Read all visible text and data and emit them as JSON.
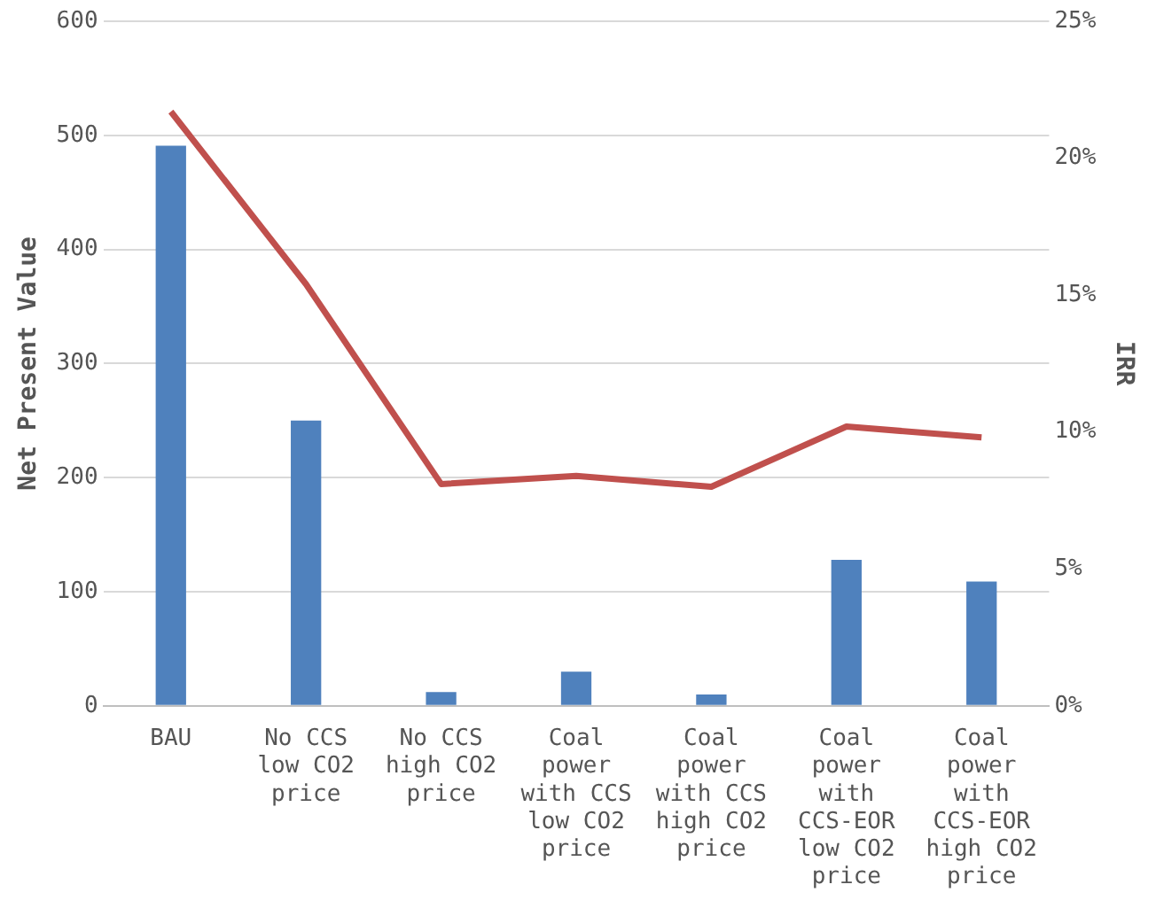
{
  "chart_data": {
    "type": "bar",
    "ylabel": "Net Present Value",
    "y2label": "IRR",
    "categories": [
      "BAU",
      "No CCS low CO2 price",
      "No CCS high CO2 price",
      "Coal power with CCS low CO2 price",
      "Coal power with CCS high CO2 price",
      "Coal power with CCS-EOR low CO2 price",
      "Coal power with CCS-EOR high CO2 price"
    ],
    "series": [
      {
        "color": "#4f81bd",
        "values": [
          491,
          250,
          12,
          30,
          10,
          128,
          109
        ]
      },
      {
        "type": "line",
        "axis": "y2",
        "color": "#c0504d",
        "marker": "none",
        "values": [
          21.7,
          15.4,
          8.1,
          8.4,
          8.0,
          10.2,
          9.8
        ]
      }
    ],
    "ylim": [
      0,
      600
    ],
    "yticks": [
      0,
      100,
      200,
      300,
      400,
      500,
      600
    ],
    "y2lim": [
      0,
      25
    ],
    "y2ticks": [
      {
        "value": 0,
        "label": "0%"
      },
      {
        "value": 5,
        "label": "5%"
      },
      {
        "value": 10,
        "label": "10%"
      },
      {
        "value": 15,
        "label": "15%"
      },
      {
        "value": 20,
        "label": "20%"
      },
      {
        "value": 25,
        "label": "25%"
      }
    ],
    "grid": "y",
    "legend": false
  }
}
